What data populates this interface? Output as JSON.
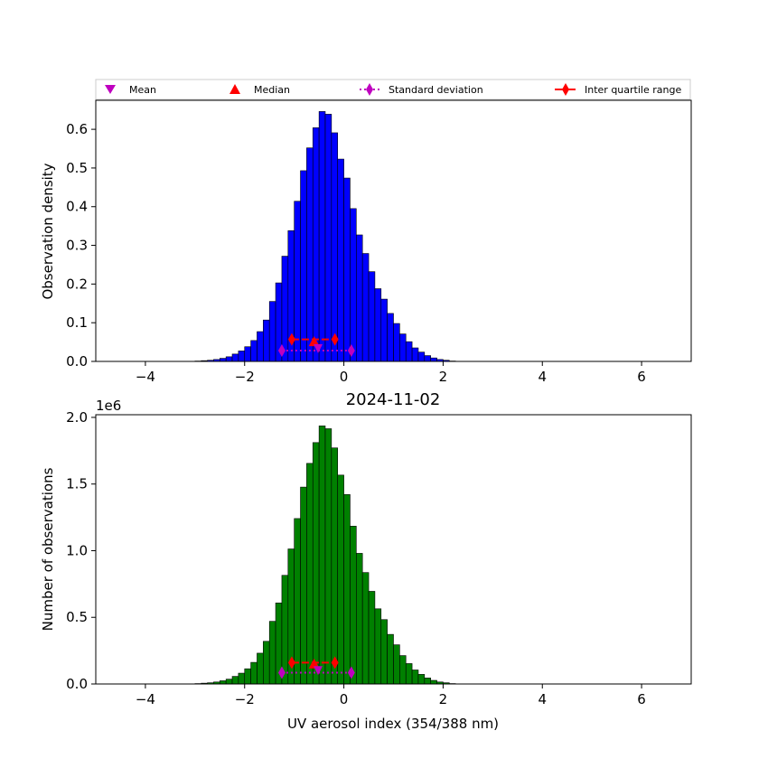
{
  "chart_data": [
    {
      "type": "bar",
      "panel": "top",
      "ylabel": "Observation density",
      "xlim": [
        -5,
        7
      ],
      "ylim": [
        0,
        0.675
      ],
      "xticks": [
        -4,
        -2,
        0,
        2,
        4,
        6
      ],
      "yticks": [
        0.0,
        0.1,
        0.2,
        0.3,
        0.4,
        0.5,
        0.6
      ],
      "ytick_labels": [
        "0.0",
        "0.1",
        "0.2",
        "0.3",
        "0.4",
        "0.5",
        "0.6"
      ],
      "bar_color": "#0000ff",
      "bin_width": 0.125,
      "bin_starts": [
        -3.0,
        -2.875,
        -2.75,
        -2.625,
        -2.5,
        -2.375,
        -2.25,
        -2.125,
        -2.0,
        -1.875,
        -1.75,
        -1.625,
        -1.5,
        -1.375,
        -1.25,
        -1.125,
        -1.0,
        -0.875,
        -0.75,
        -0.625,
        -0.5,
        -0.375,
        -0.25,
        -0.125,
        0.0,
        0.125,
        0.25,
        0.375,
        0.5,
        0.625,
        0.75,
        0.875,
        1.0,
        1.125,
        1.25,
        1.375,
        1.5,
        1.625,
        1.75,
        1.875,
        2.0,
        2.125
      ],
      "values": [
        0.001,
        0.002,
        0.003,
        0.005,
        0.008,
        0.012,
        0.019,
        0.027,
        0.038,
        0.054,
        0.077,
        0.107,
        0.155,
        0.203,
        0.272,
        0.338,
        0.414,
        0.493,
        0.552,
        0.604,
        0.646,
        0.639,
        0.591,
        0.523,
        0.474,
        0.395,
        0.327,
        0.279,
        0.232,
        0.188,
        0.161,
        0.124,
        0.098,
        0.071,
        0.051,
        0.035,
        0.024,
        0.015,
        0.009,
        0.005,
        0.003,
        0.001
      ],
      "markers": {
        "mean": {
          "x": -0.52,
          "y": 0.033
        },
        "median": {
          "x": -0.6,
          "y": 0.051
        },
        "std": {
          "x": [
            -1.25,
            0.15
          ],
          "y": 0.028
        },
        "iqr": {
          "x": [
            -1.05,
            -0.6,
            -0.18
          ],
          "y": 0.057
        }
      }
    },
    {
      "type": "bar",
      "panel": "bottom",
      "title": "2024-11-02",
      "xlabel": "UV aerosol index (354/388 nm)",
      "ylabel": "Number of observations",
      "offset_label": "1e6",
      "xlim": [
        -5,
        7
      ],
      "ylim": [
        0,
        2.02
      ],
      "xticks": [
        -4,
        -2,
        0,
        2,
        4,
        6
      ],
      "yticks": [
        0.0,
        0.5,
        1.0,
        1.5,
        2.0
      ],
      "ytick_labels": [
        "0.0",
        "0.5",
        "1.0",
        "1.5",
        "2.0"
      ],
      "bar_color": "#008000",
      "bin_width": 0.125,
      "bin_starts": [
        -3.0,
        -2.875,
        -2.75,
        -2.625,
        -2.5,
        -2.375,
        -2.25,
        -2.125,
        -2.0,
        -1.875,
        -1.75,
        -1.625,
        -1.5,
        -1.375,
        -1.25,
        -1.125,
        -1.0,
        -0.875,
        -0.75,
        -0.625,
        -0.5,
        -0.375,
        -0.25,
        -0.125,
        0.0,
        0.125,
        0.25,
        0.375,
        0.5,
        0.625,
        0.75,
        0.875,
        1.0,
        1.125,
        1.25,
        1.375,
        1.5,
        1.625,
        1.75,
        1.875,
        2.0,
        2.125
      ],
      "values": [
        0.003,
        0.006,
        0.009,
        0.015,
        0.024,
        0.036,
        0.057,
        0.081,
        0.114,
        0.162,
        0.231,
        0.32,
        0.47,
        0.608,
        0.815,
        1.013,
        1.241,
        1.477,
        1.655,
        1.811,
        1.936,
        1.915,
        1.771,
        1.567,
        1.421,
        1.184,
        0.98,
        0.836,
        0.695,
        0.564,
        0.483,
        0.372,
        0.294,
        0.213,
        0.153,
        0.105,
        0.072,
        0.045,
        0.027,
        0.015,
        0.009,
        0.003
      ],
      "markers": {
        "mean": {
          "x": -0.52,
          "y": 0.1
        },
        "median": {
          "x": -0.6,
          "y": 0.15
        },
        "std": {
          "x": [
            -1.25,
            0.15
          ],
          "y": 0.085
        },
        "iqr": {
          "x": [
            -1.05,
            -0.6,
            -0.18
          ],
          "y": 0.16
        }
      }
    }
  ],
  "legend": {
    "placement": "top, above upper panel",
    "entries": [
      {
        "label": "Mean",
        "marker": "triangle-down",
        "color": "#bf00bf"
      },
      {
        "label": "Median",
        "marker": "triangle-up",
        "color": "#ff0000"
      },
      {
        "label": "Standard deviation",
        "marker": "diamond-dotted-line",
        "color": "#bf00bf"
      },
      {
        "label": "Inter quartile range",
        "marker": "diamond-solid-line",
        "color": "#ff0000"
      }
    ]
  }
}
